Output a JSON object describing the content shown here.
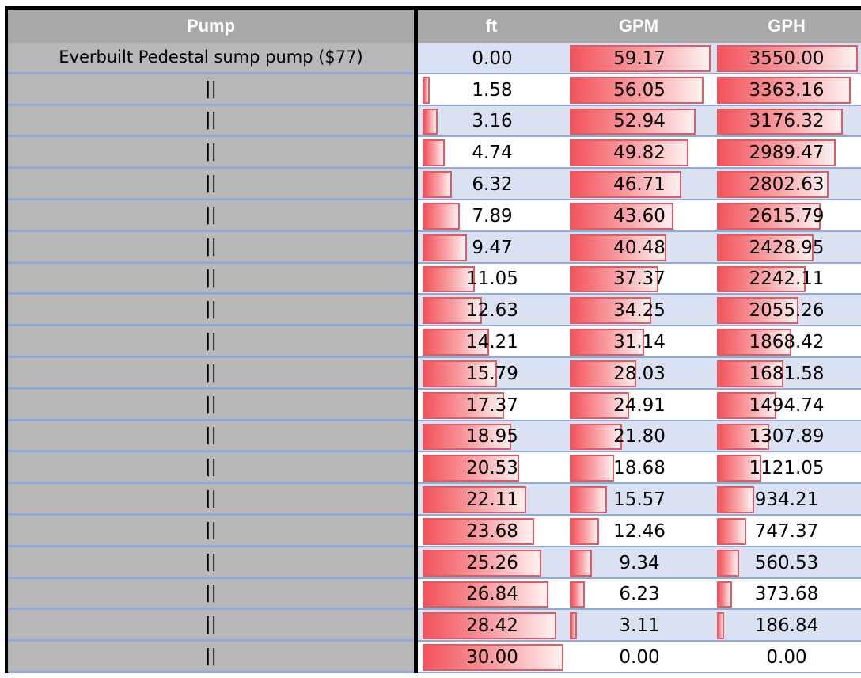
{
  "headers": {
    "pump": "Pump",
    "ft": "ft",
    "gpm": "GPM",
    "gph": "GPH"
  },
  "first_pump": "Everbuilt Pedestal sump pump ($77)",
  "ditto": "||",
  "bar_color": "#f2545b",
  "bar_border": "#e35a63",
  "row_shade": "#d9e1f2",
  "ft_max": 30.0,
  "gpm_max": 59.17,
  "gph_max": 3550.0,
  "rows": [
    {
      "ft": "0.00",
      "gpm": "59.17",
      "gph": "3550.00"
    },
    {
      "ft": "1.58",
      "gpm": "56.05",
      "gph": "3363.16"
    },
    {
      "ft": "3.16",
      "gpm": "52.94",
      "gph": "3176.32"
    },
    {
      "ft": "4.74",
      "gpm": "49.82",
      "gph": "2989.47"
    },
    {
      "ft": "6.32",
      "gpm": "46.71",
      "gph": "2802.63"
    },
    {
      "ft": "7.89",
      "gpm": "43.60",
      "gph": "2615.79"
    },
    {
      "ft": "9.47",
      "gpm": "40.48",
      "gph": "2428.95"
    },
    {
      "ft": "11.05",
      "gpm": "37.37",
      "gph": "2242.11"
    },
    {
      "ft": "12.63",
      "gpm": "34.25",
      "gph": "2055.26"
    },
    {
      "ft": "14.21",
      "gpm": "31.14",
      "gph": "1868.42"
    },
    {
      "ft": "15.79",
      "gpm": "28.03",
      "gph": "1681.58"
    },
    {
      "ft": "17.37",
      "gpm": "24.91",
      "gph": "1494.74"
    },
    {
      "ft": "18.95",
      "gpm": "21.80",
      "gph": "1307.89"
    },
    {
      "ft": "20.53",
      "gpm": "18.68",
      "gph": "1121.05"
    },
    {
      "ft": "22.11",
      "gpm": "15.57",
      "gph": "934.21"
    },
    {
      "ft": "23.68",
      "gpm": "12.46",
      "gph": "747.37"
    },
    {
      "ft": "25.26",
      "gpm": "9.34",
      "gph": "560.53"
    },
    {
      "ft": "26.84",
      "gpm": "6.23",
      "gph": "373.68"
    },
    {
      "ft": "28.42",
      "gpm": "3.11",
      "gph": "186.84"
    },
    {
      "ft": "30.00",
      "gpm": "0.00",
      "gph": "0.00"
    }
  ]
}
